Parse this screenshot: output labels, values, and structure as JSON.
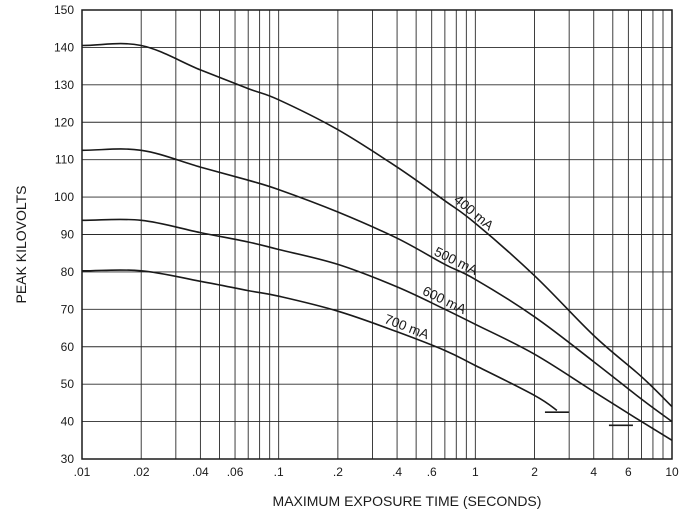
{
  "chart_data": {
    "type": "line",
    "xlabel": "MAXIMUM EXPOSURE TIME (SECONDS)",
    "ylabel": "PEAK KILOVOLTS",
    "x_scale": "log",
    "xlim": [
      0.01,
      10
    ],
    "ylim": [
      30,
      150
    ],
    "grid": true,
    "x_ticks": [
      ".01",
      ".02",
      ".04",
      ".06",
      ".1",
      ".2",
      ".4",
      ".6",
      "1",
      "2",
      "4",
      "6",
      "10"
    ],
    "y_ticks": [
      "30",
      "40",
      "50",
      "60",
      "70",
      "80",
      "90",
      "100",
      "110",
      "120",
      "130",
      "140",
      "150"
    ],
    "series": [
      {
        "name": "400 mA",
        "x": [
          0.01,
          0.02,
          0.04,
          0.07,
          0.1,
          0.2,
          0.4,
          0.7,
          1,
          2,
          4,
          7,
          10
        ],
        "y": [
          140.5,
          140.5,
          134,
          129,
          126,
          118,
          108,
          99,
          93,
          79,
          63,
          52,
          44
        ]
      },
      {
        "name": "500 mA",
        "x": [
          0.01,
          0.02,
          0.04,
          0.07,
          0.1,
          0.2,
          0.4,
          0.7,
          1,
          2,
          4,
          7,
          10
        ],
        "y": [
          112.5,
          112.5,
          108,
          104.5,
          102,
          96,
          89,
          82,
          78,
          68,
          56,
          46,
          40
        ]
      },
      {
        "name": "600 mA",
        "x": [
          0.01,
          0.02,
          0.04,
          0.07,
          0.1,
          0.2,
          0.4,
          0.7,
          1,
          2,
          4,
          7,
          10
        ],
        "y": [
          93.8,
          93.8,
          90.5,
          88,
          86,
          82,
          76,
          70,
          66,
          58,
          48,
          40,
          35
        ]
      },
      {
        "name": "700 mA",
        "x": [
          0.01,
          0.02,
          0.04,
          0.07,
          0.1,
          0.2,
          0.4,
          0.7,
          1,
          2,
          2.6
        ],
        "y": [
          80.3,
          80.3,
          77.5,
          75,
          73.5,
          69.5,
          64,
          59,
          55,
          47,
          43
        ]
      }
    ],
    "end_marks": [
      {
        "series": "700 mA",
        "x": 2.6,
        "y": 42.5
      },
      {
        "series": "600 mA",
        "x": 5.5,
        "y": 39
      }
    ]
  }
}
